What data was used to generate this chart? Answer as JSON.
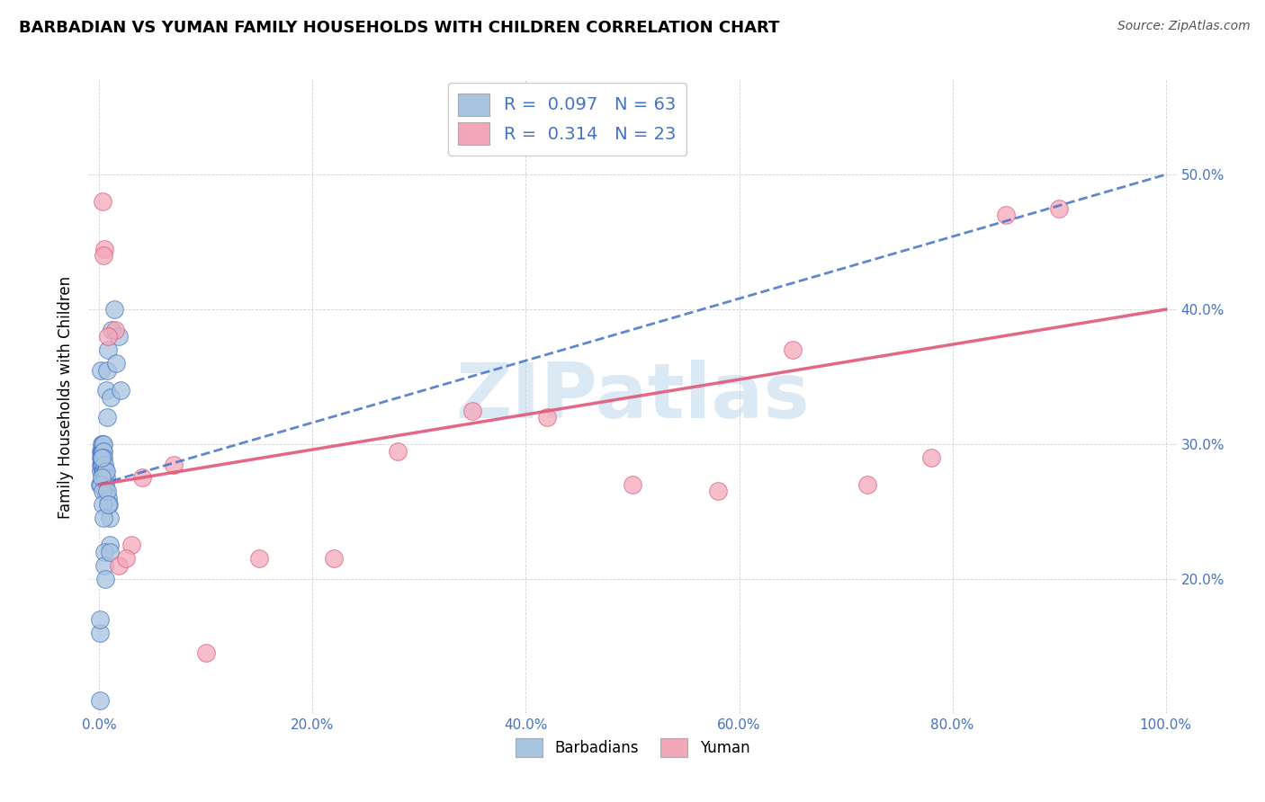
{
  "title": "BARBADIAN VS YUMAN FAMILY HOUSEHOLDS WITH CHILDREN CORRELATION CHART",
  "source": "Source: ZipAtlas.com",
  "ylabel": "Family Households with Children",
  "x_tick_labels": [
    "0.0%",
    "20.0%",
    "40.0%",
    "60.0%",
    "80.0%",
    "100.0%"
  ],
  "x_tick_vals": [
    0,
    20,
    40,
    60,
    80,
    100
  ],
  "y_tick_labels": [
    "20.0%",
    "30.0%",
    "40.0%",
    "50.0%"
  ],
  "y_tick_vals": [
    20,
    30,
    40,
    50
  ],
  "r1": "0.097",
  "n1": "63",
  "r2": "0.314",
  "n2": "23",
  "color_barbadian": "#a8c4e0",
  "color_yuman": "#f4a7b9",
  "trend_blue": "#4472c4",
  "trend_pink": "#e05878",
  "watermark": "ZIPatlas",
  "barbadian_x": [
    0.05,
    0.08,
    0.1,
    0.12,
    0.14,
    0.15,
    0.16,
    0.18,
    0.2,
    0.22,
    0.24,
    0.25,
    0.26,
    0.27,
    0.28,
    0.3,
    0.3,
    0.32,
    0.33,
    0.34,
    0.35,
    0.36,
    0.38,
    0.4,
    0.42,
    0.44,
    0.46,
    0.48,
    0.5,
    0.52,
    0.54,
    0.56,
    0.58,
    0.6,
    0.62,
    0.65,
    0.68,
    0.72,
    0.75,
    0.8,
    0.85,
    0.9,
    0.95,
    1.0,
    1.1,
    1.2,
    1.4,
    1.6,
    1.8,
    2.0,
    0.1,
    0.15,
    0.2,
    0.25,
    0.3,
    0.35,
    0.4,
    0.45,
    0.5,
    0.6,
    0.7,
    0.8,
    1.0
  ],
  "barbadian_y": [
    16.0,
    11.0,
    27.0,
    29.5,
    28.0,
    28.5,
    35.5,
    29.0,
    29.5,
    29.0,
    30.0,
    29.5,
    28.5,
    29.0,
    28.0,
    29.5,
    28.5,
    30.0,
    29.0,
    28.5,
    29.5,
    28.0,
    30.0,
    29.5,
    28.0,
    29.0,
    27.5,
    28.5,
    27.0,
    27.5,
    26.5,
    28.0,
    27.0,
    26.5,
    27.5,
    28.0,
    34.0,
    32.0,
    35.5,
    37.0,
    26.0,
    25.5,
    22.5,
    24.5,
    33.5,
    38.5,
    40.0,
    36.0,
    38.0,
    34.0,
    17.0,
    27.0,
    29.0,
    27.5,
    26.5,
    25.5,
    24.5,
    22.0,
    21.0,
    20.0,
    26.5,
    25.5,
    22.0
  ],
  "yuman_x": [
    0.3,
    0.5,
    1.5,
    3.0,
    4.0,
    7.0,
    10.0,
    15.0,
    22.0,
    28.0,
    35.0,
    42.0,
    50.0,
    58.0,
    65.0,
    72.0,
    78.0,
    85.0,
    90.0,
    0.4,
    0.8,
    1.8,
    2.5
  ],
  "yuman_y": [
    48.0,
    44.5,
    38.5,
    22.5,
    27.5,
    28.5,
    14.5,
    21.5,
    21.5,
    29.5,
    32.5,
    32.0,
    27.0,
    26.5,
    37.0,
    27.0,
    29.0,
    47.0,
    47.5,
    44.0,
    38.0,
    21.0,
    21.5
  ]
}
